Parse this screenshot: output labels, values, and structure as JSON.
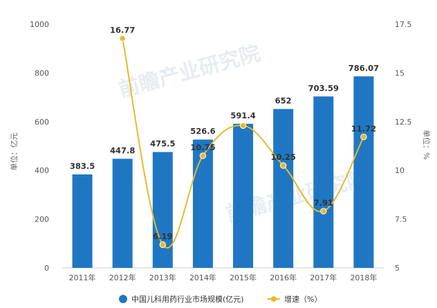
{
  "chart_data": {
    "type": "bar+line",
    "categories": [
      "2011年",
      "2012年",
      "2013年",
      "2014年",
      "2015年",
      "2016年",
      "2017年",
      "2018年"
    ],
    "series": [
      {
        "name": "中国儿科用药行业市场规模(亿元)",
        "type": "bar",
        "axis": "left",
        "color": "#1f77c4",
        "values": [
          383.5,
          447.8,
          475.5,
          526.6,
          591.4,
          652,
          703.59,
          786.07
        ],
        "labels": [
          "383.5",
          "447.8",
          "475.5",
          "526.6",
          "591.4",
          "652",
          "703.59",
          "786.07"
        ]
      },
      {
        "name": "增速（%）",
        "type": "line",
        "axis": "right",
        "color": "#e8b92c",
        "values": [
          null,
          16.77,
          6.19,
          10.75,
          12.3,
          10.25,
          7.91,
          11.72
        ],
        "labels": [
          null,
          "16.77",
          "6.19",
          "10.75",
          null,
          "10.25",
          "7.91",
          "11.72"
        ]
      }
    ],
    "y_left": {
      "label": "单位：亿元",
      "ylim": [
        0,
        1000
      ],
      "ticks": [
        "0",
        "200",
        "400",
        "600",
        "800",
        "1000"
      ]
    },
    "y_right": {
      "label": "单位：%",
      "ylim": [
        5,
        17.5
      ],
      "ticks": [
        "5",
        "7.5",
        "10",
        "12.5",
        "15",
        "17.5"
      ]
    },
    "grid": false,
    "legend_position": "bottom-center",
    "watermark": "前瞻产业研究院"
  }
}
